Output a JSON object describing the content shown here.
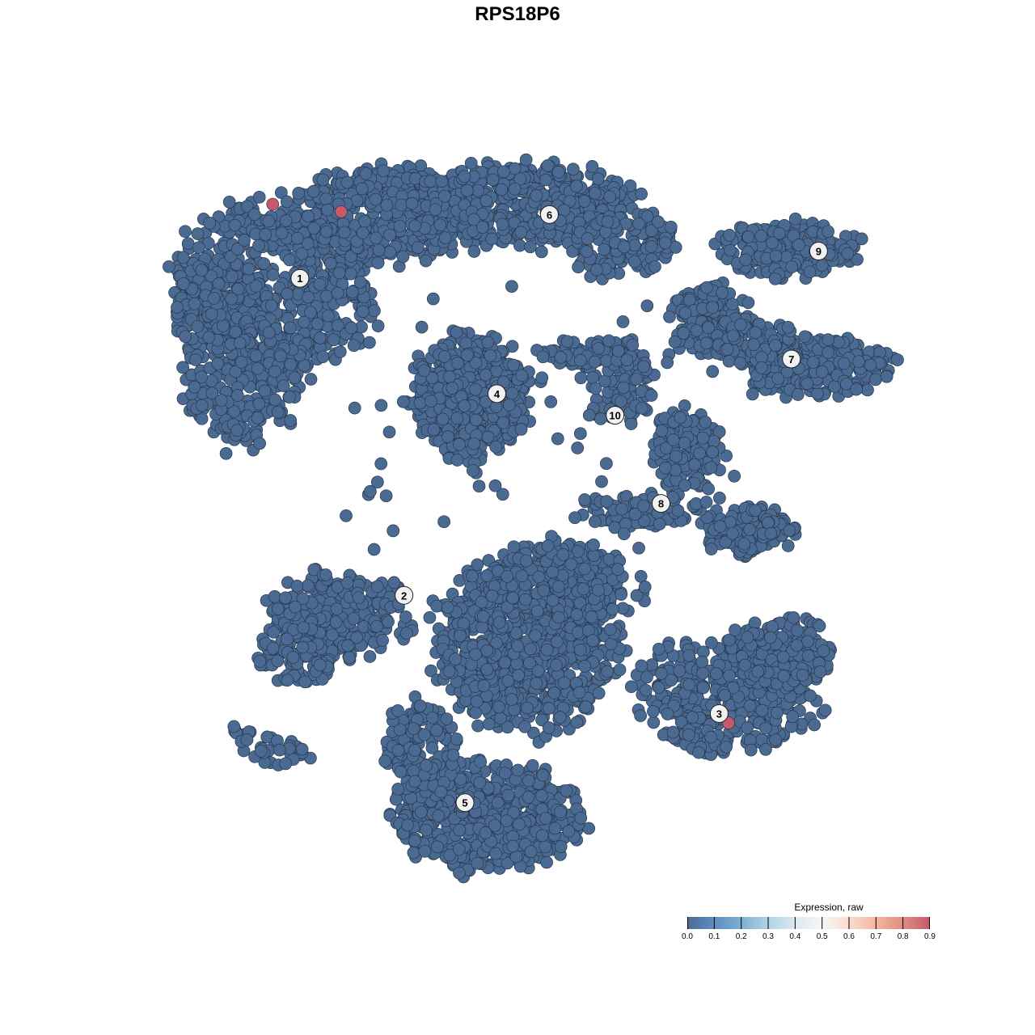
{
  "chart_data": {
    "type": "scatter",
    "title": "RPS18P6",
    "xlabel": "",
    "ylabel": "",
    "axes_visible": false,
    "grid": false,
    "point_color_low": "#4b6a91",
    "point_outline": "#26374d",
    "colorbar": {
      "title": "Expression, raw",
      "range": [
        0.0,
        0.9
      ],
      "ticks": [
        "0.0",
        "0.1",
        "0.2",
        "0.3",
        "0.4",
        "0.5",
        "0.6",
        "0.7",
        "0.8",
        "0.9"
      ],
      "colors": [
        "#4b6a94",
        "#5d8fc0",
        "#7db0d4",
        "#aed3e5",
        "#dde9f1",
        "#f7f6f5",
        "#fbdccd",
        "#f4b69d",
        "#e08d82",
        "#c8596a"
      ],
      "placement": "bottom-right"
    },
    "clusters": [
      {
        "label": "1",
        "x": -23.2,
        "y": 25.5
      },
      {
        "label": "2",
        "x": -12.1,
        "y": -8.3
      },
      {
        "label": "3",
        "x": 21.5,
        "y": -20.9
      },
      {
        "label": "4",
        "x": -2.2,
        "y": 13.2
      },
      {
        "label": "5",
        "x": -5.6,
        "y": -30.4
      },
      {
        "label": "6",
        "x": 3.4,
        "y": 32.3
      },
      {
        "label": "7",
        "x": 29.2,
        "y": 16.9
      },
      {
        "label": "8",
        "x": 15.3,
        "y": 1.5
      },
      {
        "label": "9",
        "x": 32.1,
        "y": 28.4
      },
      {
        "label": "10",
        "x": 10.4,
        "y": 10.9
      }
    ],
    "expressing_cells": [
      {
        "x": -26.1,
        "y": 33.4,
        "value": 0.9
      },
      {
        "x": -18.8,
        "y": 32.6,
        "value": 0.9
      },
      {
        "x": 22.5,
        "y": -21.9,
        "value": 0.9
      }
    ],
    "other_cells_value": 0.0
  }
}
